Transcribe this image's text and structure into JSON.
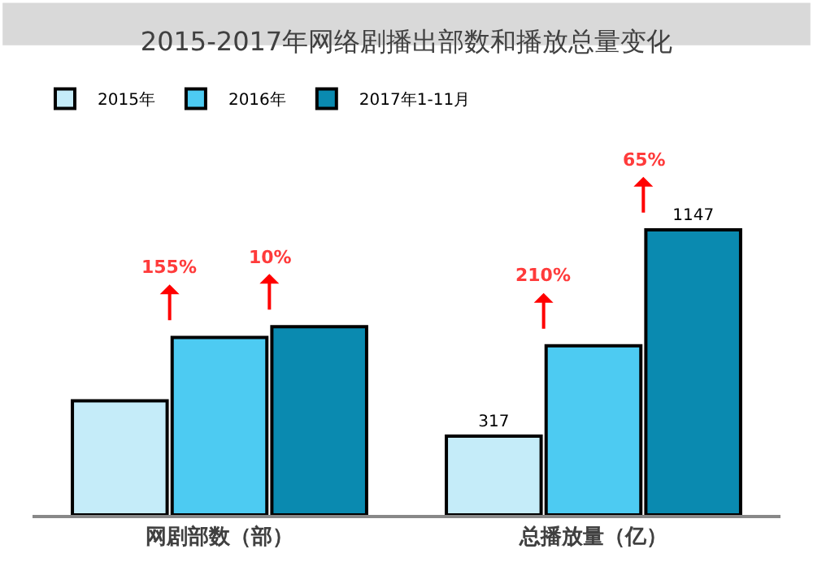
{
  "chart_data": {
    "type": "bar",
    "title": "2015-2017年网络剧播出部数和播放总量变化",
    "categories": [
      "网剧部数（部）",
      "总播放量（亿）"
    ],
    "legend": "top left",
    "tick_labels": "x",
    "series": [
      {
        "name": "2015年",
        "color": "#c5ecf9",
        "values": [
          459,
          317
        ],
        "value_labels": [
          null,
          "317"
        ]
      },
      {
        "name": "2016年",
        "color": "#4dcbf2",
        "values": [
          714,
          680
        ],
        "value_labels": [
          null,
          null
        ]
      },
      {
        "name": "2017年1-11月",
        "color": "#0a8ab0",
        "values": [
          757,
          1147
        ],
        "value_labels": [
          null,
          "1147"
        ]
      }
    ],
    "annotations": [
      "155%",
      "10%",
      "210%",
      "65%"
    ]
  }
}
